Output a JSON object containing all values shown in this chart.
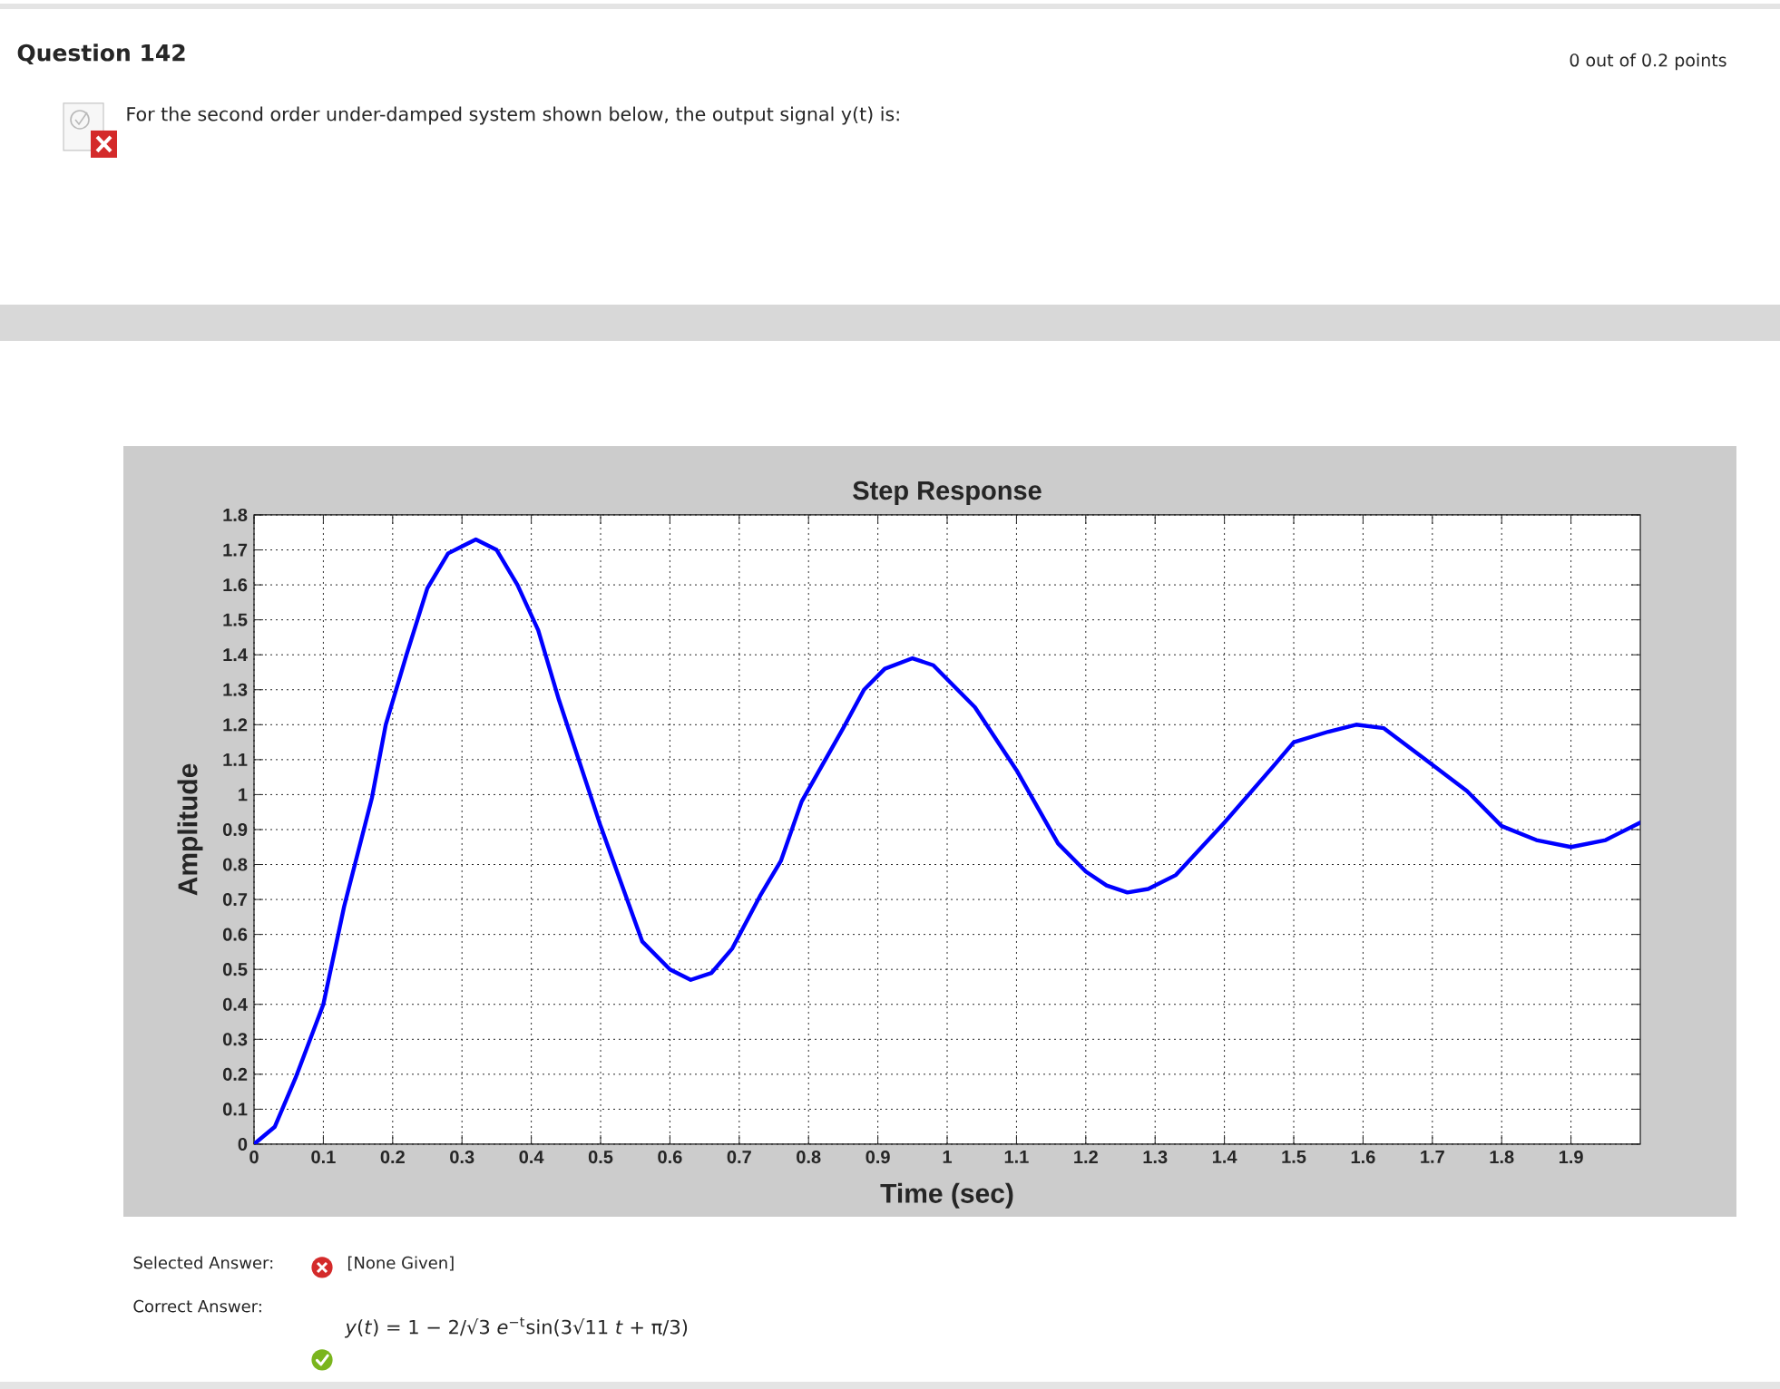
{
  "chart_data": {
    "type": "line",
    "title": "Step Response",
    "xlabel": "Time (sec)",
    "ylabel": "Amplitude",
    "annotations": [
      "Question 142",
      "0 out of 0.2 points",
      "For the second order under-damped system shown below, the output signal y(t) is:",
      "Selected Answer:",
      "[None Given]",
      "Correct Answer:",
      "*y*(*t*) = 1 − 2/√3 *e*$^{−t}$sin(3√11 *t* + π/3)"
    ],
    "x": [
      0,
      0.03,
      0.06,
      0.1,
      0.13,
      0.17,
      0.19,
      0.22,
      0.25,
      0.28,
      0.32,
      0.35,
      0.38,
      0.41,
      0.44,
      0.5,
      0.56,
      0.6,
      0.63,
      0.66,
      0.69,
      0.73,
      0.76,
      0.79,
      0.85,
      0.88,
      0.91,
      0.95,
      0.98,
      1.04,
      1.1,
      1.16,
      1.2,
      1.23,
      1.26,
      1.29,
      1.33,
      1.4,
      1.47,
      1.5,
      1.55,
      1.59,
      1.63,
      1.69,
      1.75,
      1.8,
      1.85,
      1.9,
      1.95,
      2.0
    ],
    "values": [
      0,
      0.05,
      0.19,
      0.4,
      0.68,
      0.99,
      1.2,
      1.4,
      1.59,
      1.69,
      1.73,
      1.7,
      1.6,
      1.47,
      1.27,
      0.91,
      0.58,
      0.5,
      0.47,
      0.49,
      0.56,
      0.71,
      0.81,
      0.98,
      1.19,
      1.3,
      1.36,
      1.39,
      1.37,
      1.25,
      1.07,
      0.86,
      0.78,
      0.74,
      0.72,
      0.73,
      0.77,
      0.92,
      1.08,
      1.15,
      1.18,
      1.2,
      1.19,
      1.1,
      1.01,
      0.91,
      0.87,
      0.85,
      0.87,
      0.92
    ],
    "color": "#0000ff",
    "xlim": [
      0,
      2
    ],
    "ylim": [
      0,
      1.8
    ],
    "xticks": [
      0,
      0.1,
      0.2,
      0.3,
      0.4,
      0.5,
      0.6,
      0.7,
      0.8,
      0.9,
      1,
      1.1,
      1.2,
      1.3,
      1.4,
      1.5,
      1.6,
      1.7,
      1.8,
      1.9
    ],
    "yticks": [
      0,
      0.1,
      0.2,
      0.3,
      0.4,
      0.5,
      0.6,
      0.7,
      0.8,
      0.9,
      1,
      1.1,
      1.2,
      1.3,
      1.4,
      1.5,
      1.6,
      1.7,
      1.8
    ],
    "grid": true,
    "marker": "none",
    "line_style": "solid"
  }
}
